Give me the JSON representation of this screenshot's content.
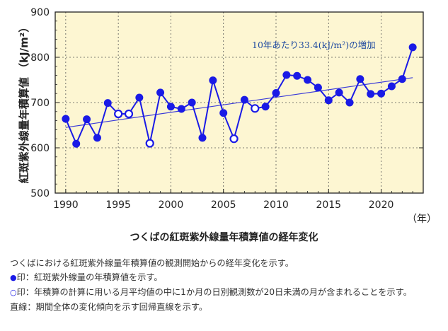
{
  "chart_data": {
    "type": "scatter",
    "title": "つくばの紅斑紫外線量年積算値の経年変化",
    "xlabel": "（年）",
    "ylabel": "紅斑紫外線量年積算値 （kJ/m²）",
    "xlim": [
      1989,
      2024
    ],
    "ylim": [
      500,
      900
    ],
    "x_ticks": [
      1990,
      1995,
      2000,
      2005,
      2010,
      2015,
      2020
    ],
    "y_ticks": [
      500,
      600,
      700,
      800,
      900
    ],
    "grid": true,
    "colors": {
      "plot_bg": "#fdf6d2",
      "series": "#1a1ae6",
      "trend": "#3a3ad8",
      "grid": "#555555",
      "annotation": "#1f4aa0"
    },
    "series": [
      {
        "name": "年積算値",
        "x": [
          1990,
          1991,
          1992,
          1993,
          1994,
          1995,
          1996,
          1997,
          1998,
          1999,
          2000,
          2001,
          2002,
          2003,
          2004,
          2005,
          2006,
          2007,
          2008,
          2009,
          2010,
          2011,
          2012,
          2013,
          2014,
          2015,
          2016,
          2017,
          2018,
          2019,
          2020,
          2021,
          2022,
          2023
        ],
        "y": [
          664,
          609,
          663,
          622,
          699,
          675,
          675,
          711,
          610,
          722,
          691,
          686,
          700,
          622,
          749,
          677,
          620,
          706,
          687,
          691,
          721,
          761,
          759,
          750,
          733,
          705,
          722,
          700,
          752,
          719,
          720,
          736,
          752,
          822
        ],
        "hollow": [
          false,
          false,
          false,
          false,
          false,
          true,
          true,
          false,
          true,
          false,
          false,
          false,
          false,
          false,
          false,
          false,
          true,
          false,
          true,
          false,
          false,
          false,
          false,
          false,
          false,
          false,
          false,
          false,
          false,
          false,
          false,
          false,
          false,
          false
        ]
      }
    ],
    "trend": {
      "name": "回帰直線",
      "x": [
        1990,
        2023
      ],
      "y": [
        645,
        755
      ]
    },
    "annotation": "10年あたり33.4(kJ/m²)の増加"
  },
  "legend": {
    "intro": "つくばにおける紅斑紫外線量年積算値の観測開始からの経年変化を示す。",
    "filled_symbol": "●",
    "filled_text": "印：紅斑紫外線量の年積算値を示す。",
    "hollow_symbol": "○",
    "hollow_text": "印：年積算の計算に用いる月平均値の中に1か月の日別観測数が20日未満の月が含まれることを示す。",
    "line_text": "直線：期間全体の変化傾向を示す回帰直線を示す。"
  }
}
